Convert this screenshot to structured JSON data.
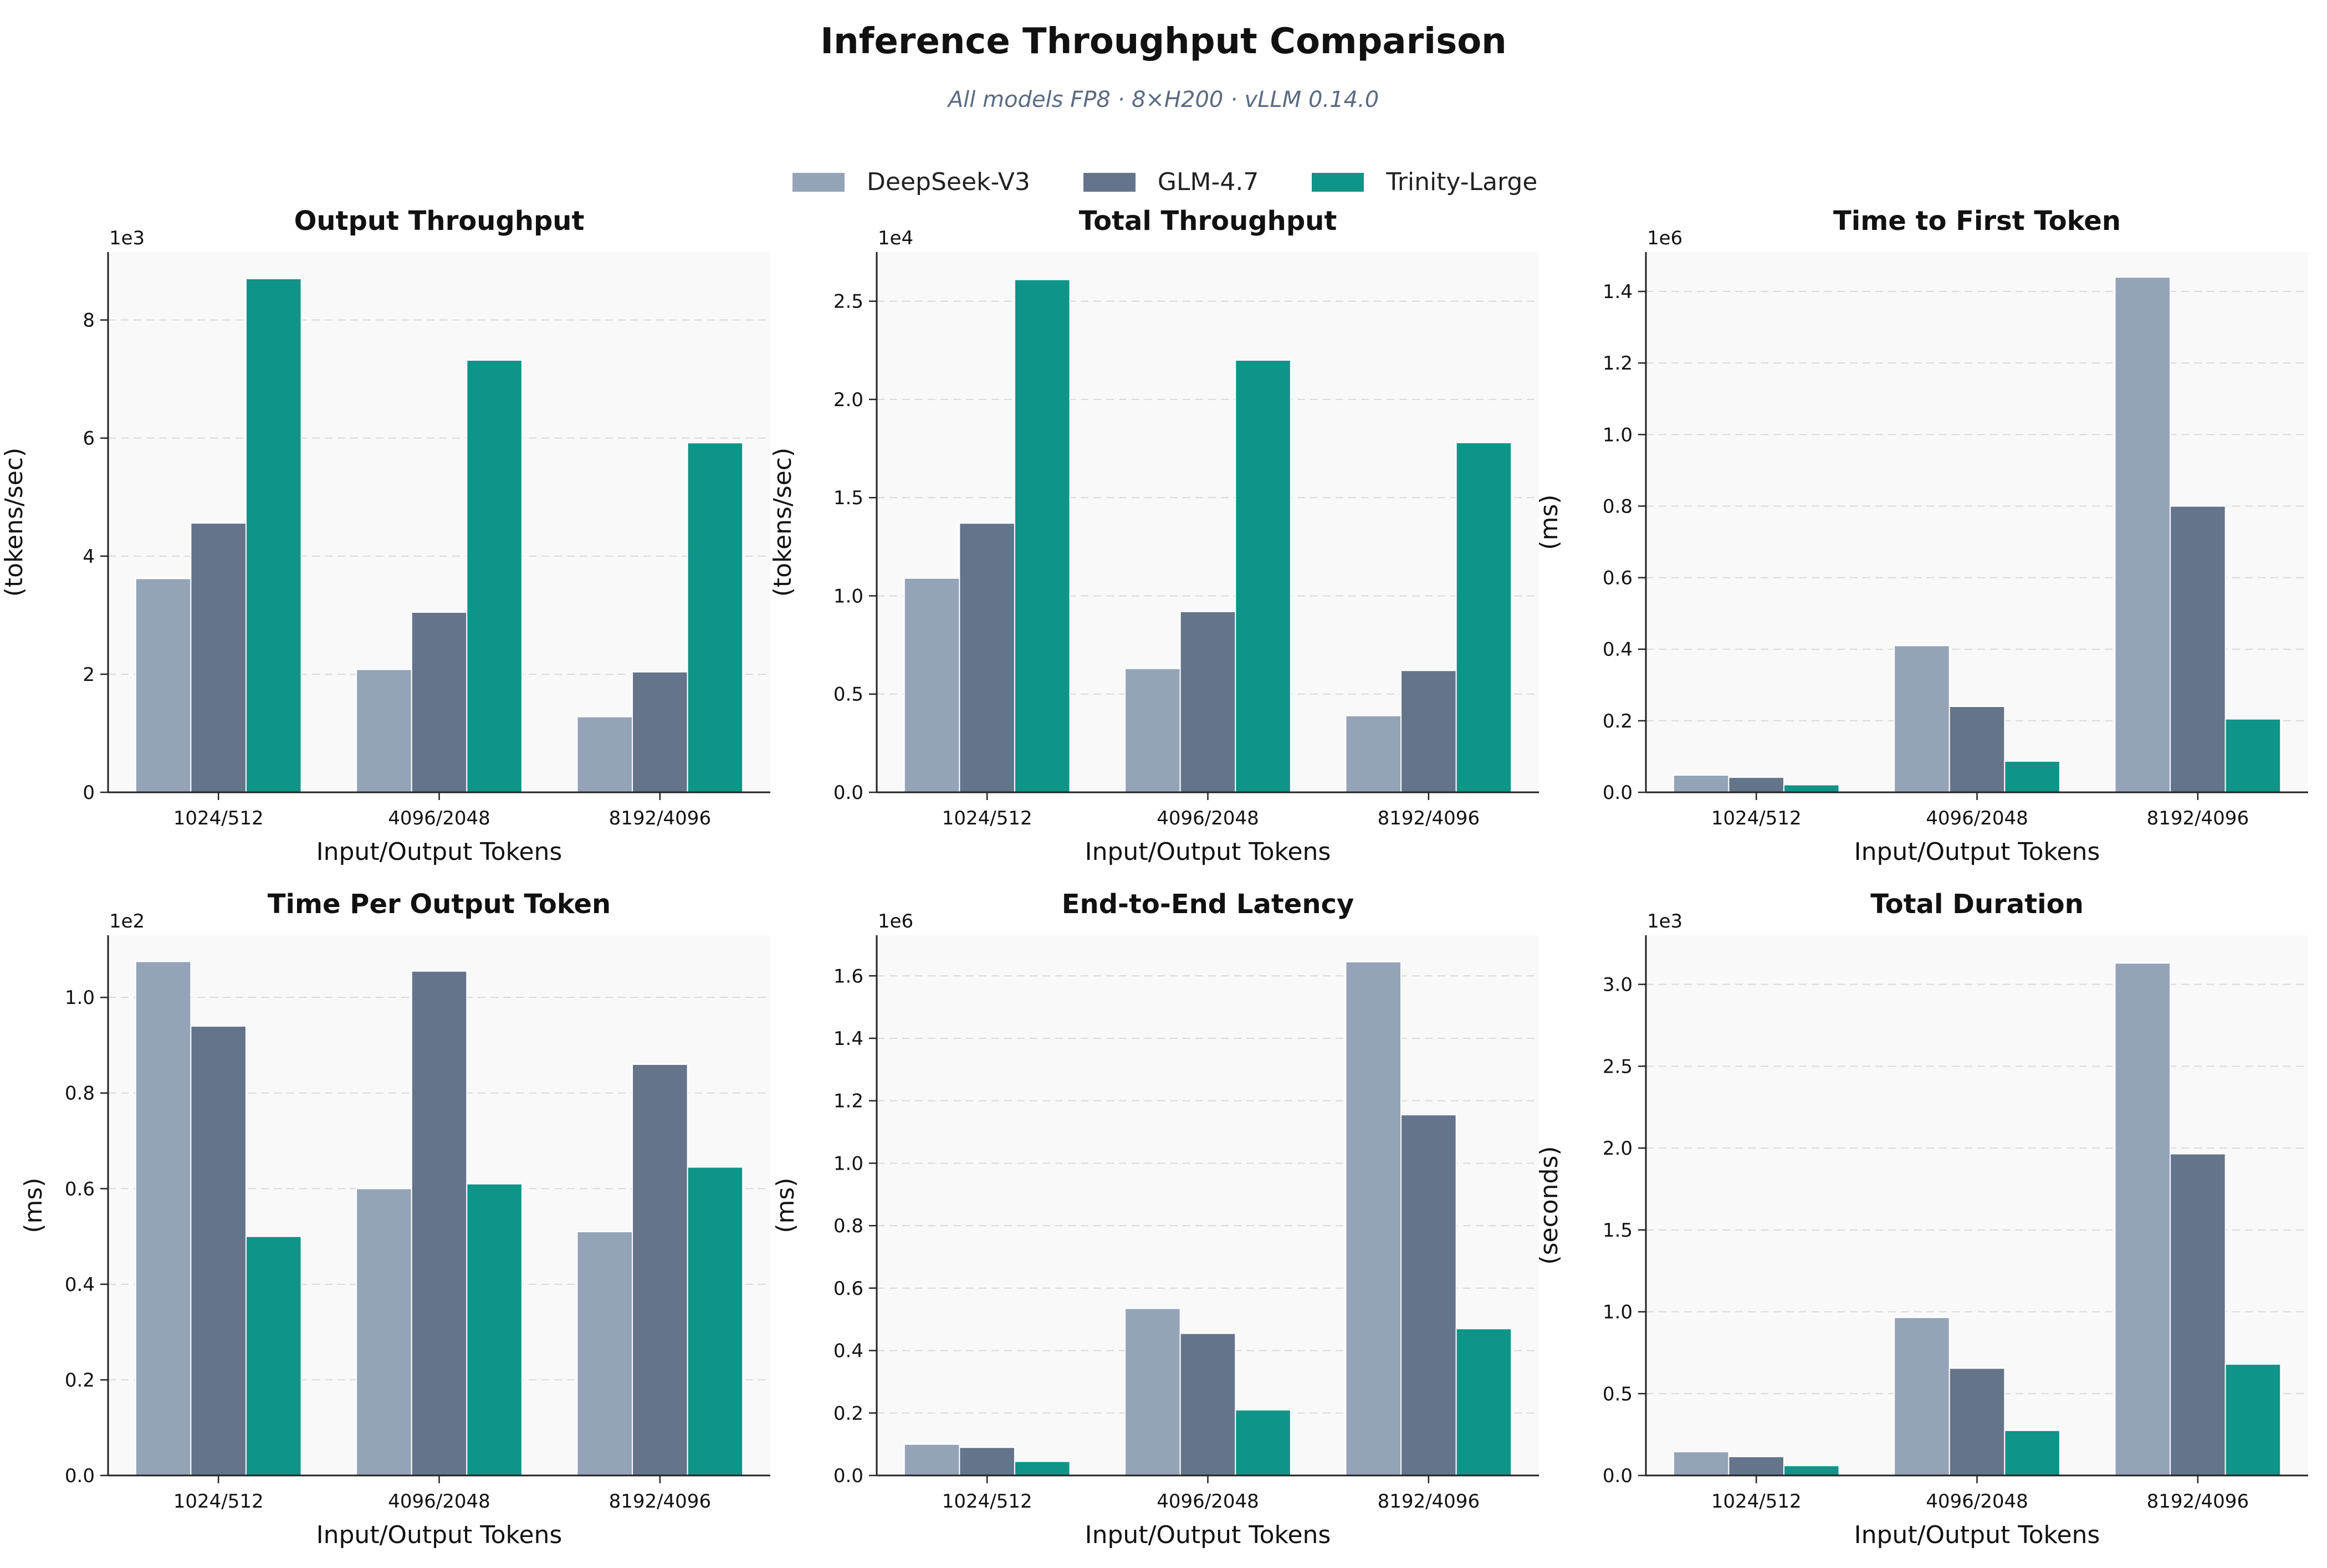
{
  "figure": {
    "title": "Inference Throughput Comparison",
    "subtitle": "All models FP8 · 8×H200 · vLLM 0.14.0"
  },
  "legend": [
    {
      "name": "DeepSeek-V3",
      "color": "#94a3b8"
    },
    {
      "name": "GLM-4.7",
      "color": "#64748b"
    },
    {
      "name": "Trinity-Large",
      "color": "#0f9488"
    }
  ],
  "chart_data": [
    {
      "type": "bar",
      "title": "Output Throughput",
      "xlabel": "Input/Output Tokens",
      "ylabel": "(tokens/sec)",
      "scale_label": "1e3",
      "categories": [
        "1024/512",
        "4096/2048",
        "8192/4096"
      ],
      "ylim": [
        0,
        9.15
      ],
      "yticks": [
        0,
        2,
        4,
        6,
        8
      ],
      "ytick_labels": [
        "0",
        "2",
        "4",
        "6",
        "8"
      ],
      "series": [
        {
          "name": "DeepSeek-V3",
          "values": [
            3.62,
            2.08,
            1.28
          ]
        },
        {
          "name": "GLM-4.7",
          "values": [
            4.56,
            3.05,
            2.04
          ]
        },
        {
          "name": "Trinity-Large",
          "values": [
            8.7,
            7.32,
            5.92
          ]
        }
      ]
    },
    {
      "type": "bar",
      "title": "Total Throughput",
      "xlabel": "Input/Output Tokens",
      "ylabel": "(tokens/sec)",
      "scale_label": "1e4",
      "categories": [
        "1024/512",
        "4096/2048",
        "8192/4096"
      ],
      "ylim": [
        0,
        2.75
      ],
      "yticks": [
        0,
        0.5,
        1.0,
        1.5,
        2.0,
        2.5
      ],
      "ytick_labels": [
        "0.0",
        "0.5",
        "1.0",
        "1.5",
        "2.0",
        "2.5"
      ],
      "series": [
        {
          "name": "DeepSeek-V3",
          "values": [
            1.09,
            0.63,
            0.39
          ]
        },
        {
          "name": "GLM-4.7",
          "values": [
            1.37,
            0.92,
            0.62
          ]
        },
        {
          "name": "Trinity-Large",
          "values": [
            2.61,
            2.2,
            1.78
          ]
        }
      ]
    },
    {
      "type": "bar",
      "title": "Time to First Token",
      "xlabel": "Input/Output Tokens",
      "ylabel": "(ms)",
      "scale_label": "1e6",
      "categories": [
        "1024/512",
        "4096/2048",
        "8192/4096"
      ],
      "ylim": [
        0,
        1.51
      ],
      "yticks": [
        0,
        0.2,
        0.4,
        0.6,
        0.8,
        1.0,
        1.2,
        1.4
      ],
      "ytick_labels": [
        "0.0",
        "0.2",
        "0.4",
        "0.6",
        "0.8",
        "1.0",
        "1.2",
        "1.4"
      ],
      "series": [
        {
          "name": "DeepSeek-V3",
          "values": [
            0.048,
            0.41,
            1.44
          ]
        },
        {
          "name": "GLM-4.7",
          "values": [
            0.042,
            0.24,
            0.8
          ]
        },
        {
          "name": "Trinity-Large",
          "values": [
            0.021,
            0.087,
            0.205
          ]
        }
      ]
    },
    {
      "type": "bar",
      "title": "Time Per Output Token",
      "xlabel": "Input/Output Tokens",
      "ylabel": "(ms)",
      "scale_label": "1e2",
      "categories": [
        "1024/512",
        "4096/2048",
        "8192/4096"
      ],
      "ylim": [
        0,
        1.13
      ],
      "yticks": [
        0,
        0.2,
        0.4,
        0.6,
        0.8,
        1.0
      ],
      "ytick_labels": [
        "0.0",
        "0.2",
        "0.4",
        "0.6",
        "0.8",
        "1.0"
      ],
      "series": [
        {
          "name": "DeepSeek-V3",
          "values": [
            1.075,
            0.6,
            0.51
          ]
        },
        {
          "name": "GLM-4.7",
          "values": [
            0.94,
            1.055,
            0.86
          ]
        },
        {
          "name": "Trinity-Large",
          "values": [
            0.5,
            0.61,
            0.645
          ]
        }
      ]
    },
    {
      "type": "bar",
      "title": "End-to-End Latency",
      "xlabel": "Input/Output Tokens",
      "ylabel": "(ms)",
      "scale_label": "1e6",
      "categories": [
        "1024/512",
        "4096/2048",
        "8192/4096"
      ],
      "ylim": [
        0,
        1.73
      ],
      "yticks": [
        0,
        0.2,
        0.4,
        0.6,
        0.8,
        1.0,
        1.2,
        1.4,
        1.6
      ],
      "ytick_labels": [
        "0.0",
        "0.2",
        "0.4",
        "0.6",
        "0.8",
        "1.0",
        "1.2",
        "1.4",
        "1.6"
      ],
      "series": [
        {
          "name": "DeepSeek-V3",
          "values": [
            0.1,
            0.535,
            1.645
          ]
        },
        {
          "name": "GLM-4.7",
          "values": [
            0.09,
            0.455,
            1.155
          ]
        },
        {
          "name": "Trinity-Large",
          "values": [
            0.045,
            0.21,
            0.47
          ]
        }
      ]
    },
    {
      "type": "bar",
      "title": "Total Duration",
      "xlabel": "Input/Output Tokens",
      "ylabel": "(seconds)",
      "scale_label": "1e3",
      "categories": [
        "1024/512",
        "4096/2048",
        "8192/4096"
      ],
      "ylim": [
        0,
        3.3
      ],
      "yticks": [
        0,
        0.5,
        1.0,
        1.5,
        2.0,
        2.5,
        3.0
      ],
      "ytick_labels": [
        "0.0",
        "0.5",
        "1.0",
        "1.5",
        "2.0",
        "2.5",
        "3.0"
      ],
      "series": [
        {
          "name": "DeepSeek-V3",
          "values": [
            0.145,
            0.965,
            3.13
          ]
        },
        {
          "name": "GLM-4.7",
          "values": [
            0.115,
            0.655,
            1.965
          ]
        },
        {
          "name": "Trinity-Large",
          "values": [
            0.06,
            0.275,
            0.68
          ]
        }
      ]
    }
  ]
}
